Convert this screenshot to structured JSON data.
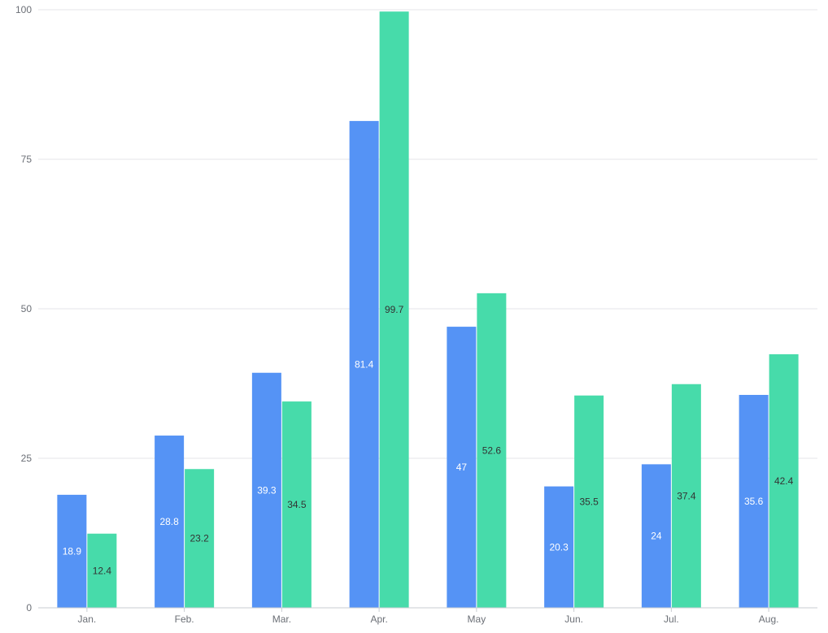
{
  "chart_data": {
    "type": "bar",
    "categories": [
      "Jan.",
      "Feb.",
      "Mar.",
      "Apr.",
      "May",
      "Jun.",
      "Jul.",
      "Aug."
    ],
    "series": [
      {
        "values": [
          18.9,
          28.8,
          39.3,
          81.4,
          47,
          20.3,
          24,
          35.6
        ],
        "color": "#5593f5",
        "label_color": "#ffffff"
      },
      {
        "values": [
          12.4,
          23.2,
          34.5,
          99.7,
          52.6,
          35.5,
          37.4,
          42.4
        ],
        "color": "#47dbaa",
        "label_color": "#333333"
      }
    ],
    "yticks": [
      0,
      25,
      50,
      75,
      100
    ],
    "ylim": [
      0,
      100
    ],
    "grid": true,
    "legend": "none",
    "data_labels": "inside-middle"
  }
}
